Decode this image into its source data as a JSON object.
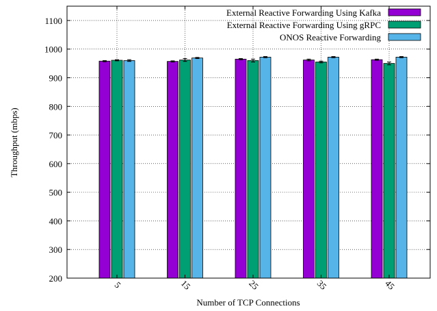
{
  "chart_data": {
    "type": "bar",
    "title": "",
    "xlabel": "Number of TCP Connections",
    "ylabel": "Throughput (mbps)",
    "ylim": [
      200,
      1150
    ],
    "yticks": [
      200,
      300,
      400,
      500,
      600,
      700,
      800,
      900,
      1000,
      1100
    ],
    "grid": true,
    "legend_position": "top-right",
    "categories": [
      "5",
      "15",
      "25",
      "35",
      "45"
    ],
    "series": [
      {
        "name": "External Reactive Forwarding Using Kafka",
        "color": "#9400d3",
        "values": [
          958,
          957,
          965,
          962,
          963
        ],
        "errors": [
          2,
          2,
          2,
          3,
          2
        ]
      },
      {
        "name": "External Reactive Forwarding Using gRPC",
        "color": "#009e73",
        "values": [
          961,
          962,
          960,
          955,
          950
        ],
        "errors": [
          2,
          5,
          5,
          3,
          5
        ]
      },
      {
        "name": "ONOS Reactive Forwarding",
        "color": "#56b4e9",
        "values": [
          960,
          969,
          972,
          972,
          972
        ],
        "errors": [
          3,
          2,
          2,
          2,
          2
        ]
      }
    ]
  }
}
